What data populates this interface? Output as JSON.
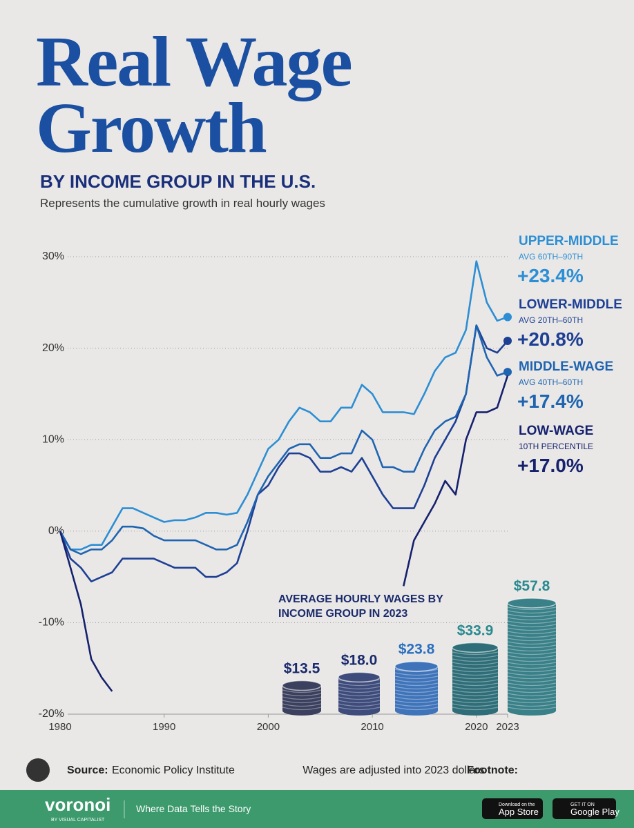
{
  "chart_data": [
    {
      "type": "line",
      "title": "Real Wage Growth",
      "subtitle": "BY INCOME GROUP IN THE U.S.",
      "description": "Represents the cumulative growth in real hourly wages",
      "x": [
        1980,
        1981,
        1982,
        1983,
        1984,
        1985,
        1986,
        1987,
        1988,
        1989,
        1990,
        1991,
        1992,
        1993,
        1994,
        1995,
        1996,
        1997,
        1998,
        1999,
        2000,
        2001,
        2002,
        2003,
        2004,
        2005,
        2006,
        2007,
        2008,
        2009,
        2010,
        2011,
        2012,
        2013,
        2014,
        2015,
        2016,
        2017,
        2018,
        2019,
        2020,
        2021,
        2022,
        2023
      ],
      "xlim": [
        1980,
        2023
      ],
      "xticks": [
        1980,
        1990,
        2000,
        2010,
        2020,
        2023
      ],
      "ylim": [
        -20,
        30
      ],
      "yticks": [
        {
          "value": -20,
          "label": "-20%"
        },
        {
          "value": -10,
          "label": "-10%"
        },
        {
          "value": 0,
          "label": "0%"
        },
        {
          "value": 10,
          "label": "10%"
        },
        {
          "value": 20,
          "label": "20%"
        },
        {
          "value": 30,
          "label": "30%"
        }
      ],
      "grid": true,
      "series": [
        {
          "name": "UPPER-MIDDLE",
          "range": "AVG 60TH–90TH",
          "end_label": "+23.4%",
          "color": "#2c8ed4",
          "values": [
            0,
            -2,
            -2,
            -1.5,
            -1.5,
            0.5,
            2.5,
            2.5,
            2,
            1.5,
            1,
            1.2,
            1.2,
            1.5,
            2,
            2,
            1.8,
            2,
            4,
            6.5,
            9,
            10,
            12,
            13.5,
            13,
            12,
            12,
            13.5,
            13.5,
            16,
            15,
            13,
            13,
            13,
            12.8,
            15,
            17.5,
            19,
            19.5,
            22,
            29.5,
            25,
            23,
            23.4
          ]
        },
        {
          "name": "LOWER-MIDDLE",
          "range": "AVG 20TH–60TH",
          "end_label": "+20.8%",
          "color": "#1d3f94",
          "values": [
            0,
            -3,
            -4,
            -5.5,
            -5,
            -4.5,
            -3,
            -3,
            -3,
            -3,
            -3.5,
            -4,
            -4,
            -4,
            -5,
            -5,
            -4.5,
            -3.5,
            0,
            4,
            5,
            7,
            8.5,
            8.5,
            8,
            6.5,
            6.5,
            7,
            6.5,
            8,
            6,
            4,
            2.5,
            2.5,
            2.5,
            5,
            8,
            10,
            12,
            15,
            22.5,
            20,
            19.5,
            20.8
          ]
        },
        {
          "name": "MIDDLE-WAGE",
          "range": "AVG 40TH–60TH",
          "end_label": "+17.4%",
          "color": "#1f64b1",
          "values": [
            0,
            -2,
            -2.5,
            -2,
            -2,
            -1,
            0.5,
            0.5,
            0.3,
            -0.5,
            -1,
            -1,
            -1,
            -1,
            -1.5,
            -2,
            -2,
            -1.5,
            1,
            4,
            6,
            7.5,
            9,
            9.5,
            9.5,
            8,
            8,
            8.5,
            8.5,
            11,
            10,
            7,
            7,
            6.5,
            6.5,
            9,
            11,
            12,
            12.5,
            15,
            22.5,
            19,
            17,
            17.4
          ]
        },
        {
          "name": "LOW-WAGE",
          "range": "10TH PERCENTILE",
          "end_label": "+17.0%",
          "color": "#16216e",
          "values": [
            0,
            -4,
            -8,
            -14,
            -16,
            -17.5,
            null,
            null,
            null,
            null,
            null,
            null,
            null,
            null,
            null,
            null,
            null,
            null,
            null,
            null,
            null,
            null,
            null,
            null,
            null,
            null,
            null,
            null,
            null,
            null,
            null,
            null,
            null,
            -6,
            -1,
            1,
            3,
            5.5,
            4,
            10,
            13,
            13,
            13.5,
            17.0
          ]
        }
      ]
    },
    {
      "type": "bar",
      "title": "AVERAGE HOURLY WAGES BY INCOME GROUP IN 2023",
      "categories": [
        null,
        null,
        null,
        null,
        null
      ],
      "values": [
        13.5,
        18.0,
        23.8,
        33.9,
        57.8
      ],
      "value_labels": [
        "$13.5",
        "$18.0",
        "$23.8",
        "$33.9",
        "$57.8"
      ],
      "colors": [
        "#3b405e",
        "#3e4c7c",
        "#3f74ba",
        "#2f6e78",
        "#3a8088"
      ]
    }
  ],
  "footer": {
    "source_label": "Source:",
    "source": "Economic Policy Institute",
    "footnote_label": "Footnote:",
    "footnote": "Wages are adjusted into 2023 dollars",
    "brand": "voronoi",
    "brand_sub": "BY VISUAL CAPITALIST",
    "tagline": "Where Data Tells the Story",
    "app_store_small": "Download on the",
    "app_store": "App Store",
    "google_play_small": "GET IT ON",
    "google_play": "Google Play"
  }
}
